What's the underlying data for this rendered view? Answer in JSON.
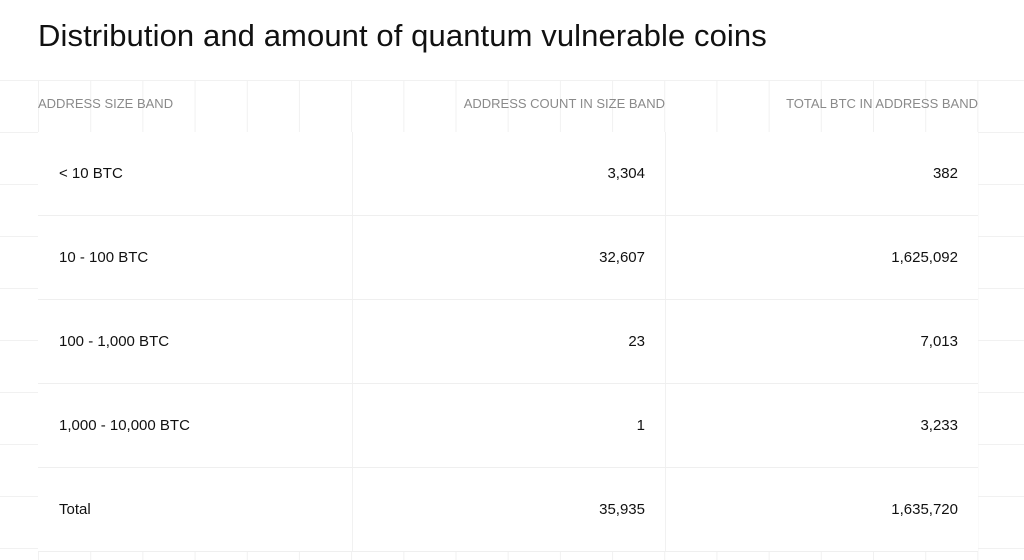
{
  "title": "Distribution and amount of quantum vulnerable coins",
  "columns": [
    "ADDRESS SIZE BAND",
    "ADDRESS COUNT IN SIZE BAND",
    "TOTAL BTC IN ADDRESS BAND"
  ],
  "rows": [
    [
      "< 10 BTC",
      "3,304",
      "382"
    ],
    [
      "10 - 100 BTC",
      "32,607",
      "1,625,092"
    ],
    [
      "100 - 1,000 BTC",
      "23",
      "7,013"
    ],
    [
      "1,000 - 10,000 BTC",
      "1",
      "3,233"
    ],
    [
      "Total",
      "35,935",
      "1,635,720"
    ]
  ]
}
